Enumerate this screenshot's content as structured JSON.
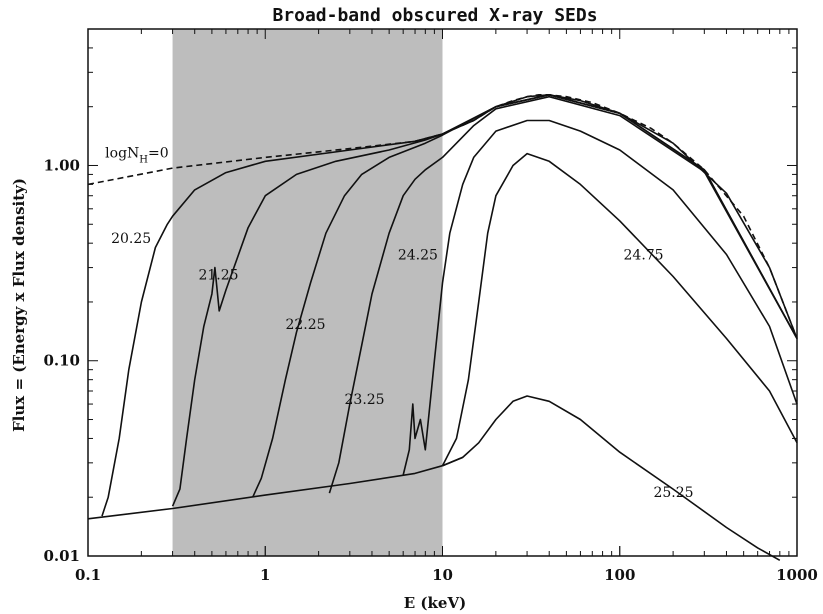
{
  "chart_data": {
    "type": "line",
    "title": "Broad-band obscured X-ray SEDs",
    "xlabel": "E (keV)",
    "ylabel": "Flux = (Energy x Flux density)",
    "xscale": "log",
    "yscale": "log",
    "xlim": [
      0.1,
      1000
    ],
    "ylim": [
      0.01,
      5
    ],
    "xticks": [
      {
        "v": 0.1,
        "label": "0.1"
      },
      {
        "v": 1,
        "label": "1"
      },
      {
        "v": 10,
        "label": "10"
      },
      {
        "v": 100,
        "label": "100"
      },
      {
        "v": 1000,
        "label": "1000"
      }
    ],
    "yticks": [
      {
        "v": 0.01,
        "label": "0.01"
      },
      {
        "v": 0.1,
        "label": "0.10"
      },
      {
        "v": 1,
        "label": "1.00"
      }
    ],
    "shaded_band": {
      "x0": 0.3,
      "x1": 10,
      "color": "#bdbdbd"
    },
    "series": [
      {
        "label": "logN",
        "label_sub": "H",
        "label_suffix": "=0",
        "label_at": [
          0.125,
          1.1
        ],
        "dash": true,
        "points": [
          [
            0.1,
            0.8
          ],
          [
            0.3,
            0.97
          ],
          [
            1,
            1.1
          ],
          [
            3,
            1.22
          ],
          [
            7,
            1.33
          ],
          [
            10,
            1.45
          ],
          [
            15,
            1.7
          ],
          [
            20,
            2.0
          ],
          [
            25,
            2.15
          ],
          [
            30,
            2.25
          ],
          [
            35,
            2.3
          ],
          [
            40,
            2.3
          ],
          [
            50,
            2.25
          ],
          [
            70,
            2.1
          ],
          [
            100,
            1.85
          ],
          [
            150,
            1.55
          ],
          [
            200,
            1.3
          ],
          [
            300,
            0.95
          ],
          [
            500,
            0.55
          ],
          [
            700,
            0.3
          ],
          [
            1000,
            0.13
          ]
        ]
      },
      {
        "label": "20.25",
        "label_at": [
          0.135,
          0.4
        ],
        "points": [
          [
            0.12,
            0.016
          ],
          [
            0.13,
            0.02
          ],
          [
            0.15,
            0.04
          ],
          [
            0.17,
            0.09
          ],
          [
            0.2,
            0.2
          ],
          [
            0.24,
            0.38
          ],
          [
            0.28,
            0.5
          ],
          [
            0.3,
            0.55
          ],
          [
            0.4,
            0.75
          ],
          [
            0.6,
            0.92
          ],
          [
            1,
            1.05
          ],
          [
            3,
            1.2
          ],
          [
            7,
            1.33
          ],
          [
            10,
            1.45
          ],
          [
            15,
            1.7
          ],
          [
            20,
            2.0
          ],
          [
            30,
            2.25
          ],
          [
            40,
            2.3
          ],
          [
            60,
            2.15
          ],
          [
            100,
            1.85
          ],
          [
            200,
            1.3
          ],
          [
            400,
            0.72
          ],
          [
            700,
            0.3
          ],
          [
            1000,
            0.13
          ]
        ]
      },
      {
        "label": "21.25",
        "label_at": [
          0.42,
          0.26
        ],
        "points": [
          [
            0.3,
            0.018
          ],
          [
            0.33,
            0.022
          ],
          [
            0.36,
            0.04
          ],
          [
            0.4,
            0.08
          ],
          [
            0.45,
            0.15
          ],
          [
            0.5,
            0.22
          ],
          [
            0.52,
            0.3
          ],
          [
            0.55,
            0.18
          ],
          [
            0.6,
            0.23
          ],
          [
            0.8,
            0.48
          ],
          [
            1,
            0.7
          ],
          [
            1.5,
            0.9
          ],
          [
            2.5,
            1.05
          ],
          [
            5,
            1.2
          ],
          [
            8,
            1.35
          ],
          [
            10,
            1.45
          ],
          [
            20,
            2.0
          ],
          [
            40,
            2.3
          ],
          [
            100,
            1.85
          ],
          [
            300,
            0.95
          ],
          [
            1000,
            0.13
          ]
        ]
      },
      {
        "label": "22.25",
        "label_at": [
          1.3,
          0.145
        ],
        "points": [
          [
            0.85,
            0.02
          ],
          [
            0.95,
            0.025
          ],
          [
            1.1,
            0.04
          ],
          [
            1.3,
            0.08
          ],
          [
            1.5,
            0.14
          ],
          [
            1.8,
            0.25
          ],
          [
            2.2,
            0.45
          ],
          [
            2.8,
            0.7
          ],
          [
            3.5,
            0.9
          ],
          [
            5,
            1.1
          ],
          [
            8,
            1.3
          ],
          [
            10,
            1.43
          ],
          [
            20,
            2.0
          ],
          [
            40,
            2.3
          ],
          [
            100,
            1.85
          ],
          [
            300,
            0.95
          ],
          [
            1000,
            0.13
          ]
        ]
      },
      {
        "label": "23.25",
        "label_at": [
          2.8,
          0.06
        ],
        "points": [
          [
            2.3,
            0.021
          ],
          [
            2.6,
            0.03
          ],
          [
            3,
            0.06
          ],
          [
            3.5,
            0.12
          ],
          [
            4,
            0.22
          ],
          [
            5,
            0.45
          ],
          [
            6,
            0.7
          ],
          [
            7,
            0.85
          ],
          [
            8,
            0.95
          ],
          [
            10,
            1.1
          ],
          [
            15,
            1.6
          ],
          [
            20,
            1.95
          ],
          [
            40,
            2.25
          ],
          [
            100,
            1.8
          ],
          [
            300,
            0.93
          ],
          [
            1000,
            0.13
          ]
        ]
      },
      {
        "label": "24.25",
        "label_at": [
          5.6,
          0.33
        ],
        "points": [
          [
            6,
            0.026
          ],
          [
            6.5,
            0.035
          ],
          [
            6.8,
            0.06
          ],
          [
            7,
            0.04
          ],
          [
            7.5,
            0.05
          ],
          [
            8,
            0.035
          ],
          [
            8.5,
            0.06
          ],
          [
            9,
            0.1
          ],
          [
            10,
            0.25
          ],
          [
            11,
            0.45
          ],
          [
            13,
            0.8
          ],
          [
            15,
            1.1
          ],
          [
            20,
            1.5
          ],
          [
            30,
            1.7
          ],
          [
            40,
            1.7
          ],
          [
            60,
            1.5
          ],
          [
            100,
            1.2
          ],
          [
            200,
            0.75
          ],
          [
            400,
            0.35
          ],
          [
            700,
            0.15
          ],
          [
            1000,
            0.06
          ]
        ]
      },
      {
        "label": "24.75",
        "label_at": [
          105,
          0.33
        ],
        "points": [
          [
            10,
            0.029
          ],
          [
            12,
            0.04
          ],
          [
            14,
            0.08
          ],
          [
            16,
            0.2
          ],
          [
            18,
            0.45
          ],
          [
            20,
            0.7
          ],
          [
            25,
            1.0
          ],
          [
            30,
            1.15
          ],
          [
            40,
            1.05
          ],
          [
            60,
            0.8
          ],
          [
            100,
            0.52
          ],
          [
            200,
            0.27
          ],
          [
            400,
            0.13
          ],
          [
            700,
            0.07
          ],
          [
            1000,
            0.038
          ]
        ]
      },
      {
        "label": "25.25",
        "label_at": [
          155,
          0.02
        ],
        "points": [
          [
            10,
            0.029
          ],
          [
            13,
            0.032
          ],
          [
            16,
            0.038
          ],
          [
            20,
            0.05
          ],
          [
            25,
            0.062
          ],
          [
            30,
            0.066
          ],
          [
            40,
            0.062
          ],
          [
            60,
            0.05
          ],
          [
            100,
            0.034
          ],
          [
            200,
            0.022
          ],
          [
            400,
            0.014
          ],
          [
            600,
            0.011
          ],
          [
            800,
            0.0095
          ]
        ]
      },
      {
        "label": "",
        "baseline": true,
        "points": [
          [
            0.1,
            0.0155
          ],
          [
            0.3,
            0.0175
          ],
          [
            1,
            0.0205
          ],
          [
            3,
            0.0235
          ],
          [
            7,
            0.0265
          ],
          [
            10,
            0.029
          ],
          [
            13,
            0.032
          ]
        ]
      }
    ]
  }
}
